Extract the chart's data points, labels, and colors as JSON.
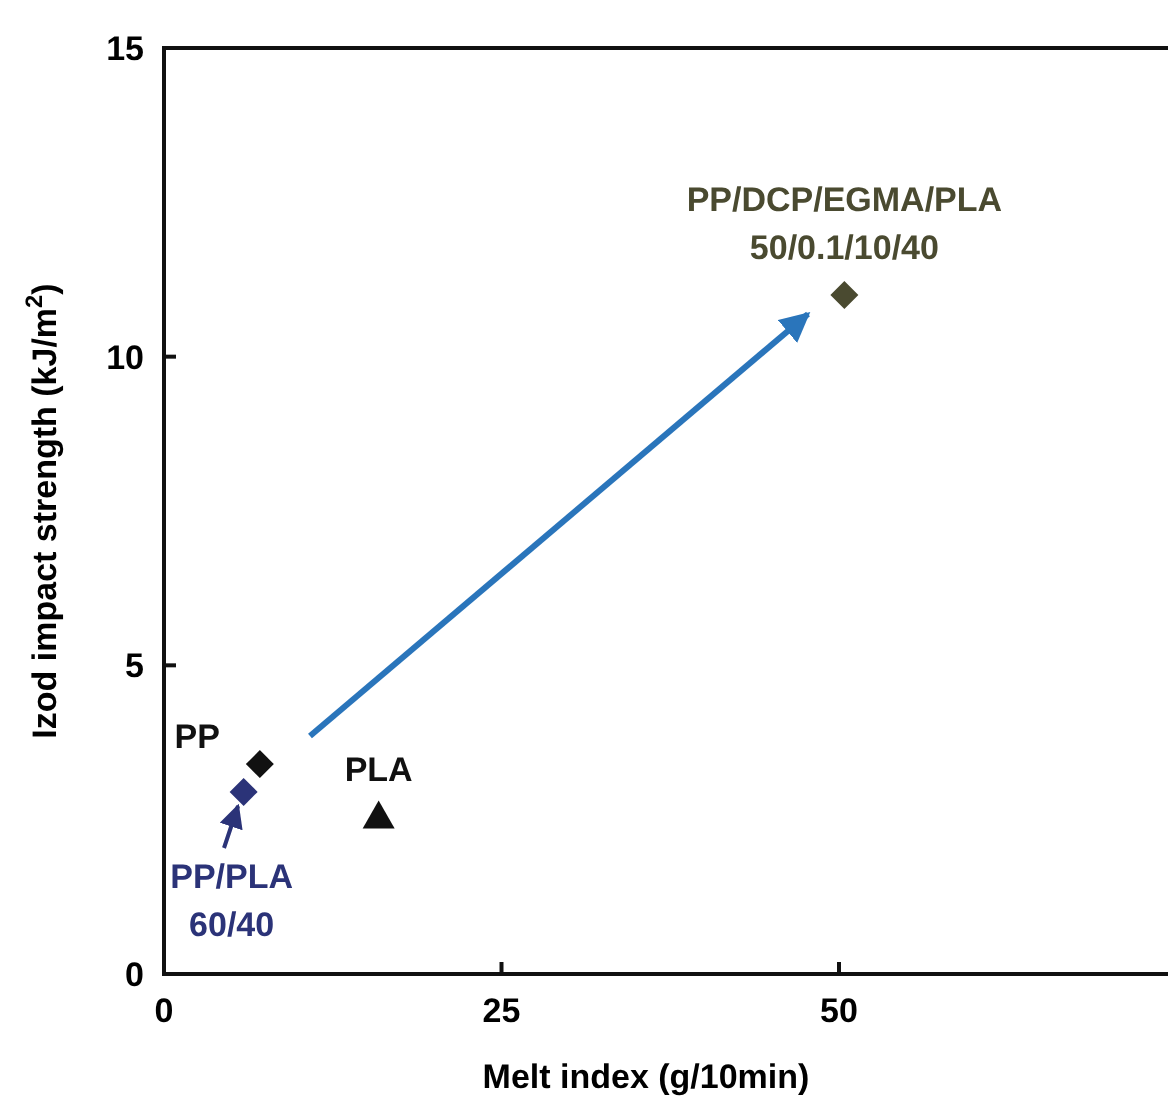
{
  "chart_data": {
    "type": "scatter",
    "xlabel": "Melt index (g/10min)",
    "ylabel": "Izod impact strength (kJ/m$^{2}$)",
    "xlim": [
      0,
      75
    ],
    "ylim": [
      0,
      15
    ],
    "xticks": [
      0,
      25,
      50
    ],
    "yticks": [
      0,
      5,
      10,
      15
    ],
    "grid": false,
    "series": [
      {
        "name": "PP",
        "color": "#111111",
        "marker": "diamond",
        "x": [
          7.1
        ],
        "values": [
          3.4
        ]
      },
      {
        "name": "PP/PLA\n60/40",
        "color": "#2b3378",
        "marker": "diamond",
        "x": [
          5.9
        ],
        "values": [
          2.95
        ]
      },
      {
        "name": "PLA",
        "color": "#111111",
        "marker": "triangle",
        "x": [
          15.9
        ],
        "values": [
          2.55
        ]
      },
      {
        "name": "PP/DCP/EGMA/PLA\n50/0.1/10/40",
        "color": "#4a4a30",
        "marker": "diamond",
        "x": [
          50.4
        ],
        "values": [
          11.0
        ]
      }
    ]
  }
}
